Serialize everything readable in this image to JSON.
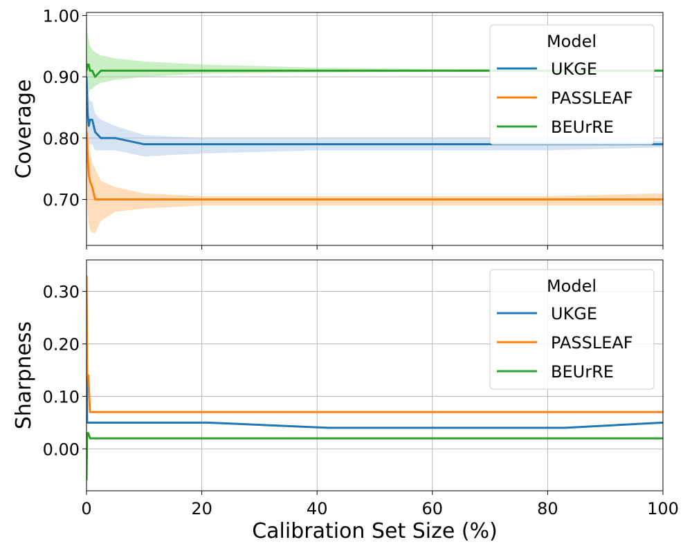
{
  "chart_data": [
    {
      "type": "line",
      "title": "",
      "xlabel": "",
      "ylabel": "Coverage",
      "xlim": [
        0,
        100
      ],
      "ylim": [
        0.625,
        1.005
      ],
      "xticks": [
        0,
        20,
        40,
        60,
        80,
        100
      ],
      "yticks": [
        0.7,
        0.8,
        0.9,
        1.0
      ],
      "ytick_labels": [
        "0.70",
        "0.80",
        "0.90",
        "1.00"
      ],
      "show_xtick_labels": false,
      "grid": true,
      "legend": {
        "title": "Model",
        "position": "top-right"
      },
      "series": [
        {
          "name": "UKGE",
          "color": "#1f77b4",
          "band_color": "#aec7e8",
          "x": [
            0,
            0.2,
            0.4,
            0.6,
            1,
            1.5,
            2.5,
            5,
            10,
            20,
            40,
            60,
            80,
            100
          ],
          "y": [
            0.9,
            0.84,
            0.82,
            0.83,
            0.83,
            0.81,
            0.8,
            0.8,
            0.79,
            0.79,
            0.79,
            0.79,
            0.79,
            0.79
          ],
          "lower": [
            0.8,
            0.79,
            0.79,
            0.79,
            0.79,
            0.78,
            0.78,
            0.78,
            0.77,
            0.775,
            0.78,
            0.78,
            0.78,
            0.785
          ],
          "upper": [
            0.96,
            0.9,
            0.87,
            0.86,
            0.86,
            0.84,
            0.83,
            0.82,
            0.805,
            0.8,
            0.8,
            0.8,
            0.8,
            0.795
          ]
        },
        {
          "name": "PASSLEAF",
          "color": "#ff7f0e",
          "band_color": "#ffbb78",
          "x": [
            0,
            0.2,
            0.4,
            0.6,
            1,
            1.5,
            2.5,
            5,
            10,
            20,
            40,
            60,
            80,
            100
          ],
          "y": [
            0.81,
            0.77,
            0.74,
            0.73,
            0.72,
            0.7,
            0.7,
            0.7,
            0.7,
            0.7,
            0.7,
            0.7,
            0.7,
            0.7
          ],
          "lower": [
            0.71,
            0.68,
            0.66,
            0.65,
            0.645,
            0.645,
            0.665,
            0.68,
            0.685,
            0.69,
            0.69,
            0.69,
            0.69,
            0.69
          ],
          "upper": [
            0.87,
            0.83,
            0.8,
            0.78,
            0.76,
            0.75,
            0.73,
            0.72,
            0.71,
            0.705,
            0.705,
            0.705,
            0.705,
            0.71
          ]
        },
        {
          "name": "BEUrRE",
          "color": "#2ca02c",
          "band_color": "#98df8a",
          "x": [
            0,
            0.2,
            0.4,
            0.6,
            1,
            1.5,
            2.5,
            5,
            10,
            20,
            40,
            60,
            80,
            100
          ],
          "y": [
            0.91,
            0.92,
            0.92,
            0.91,
            0.91,
            0.9,
            0.91,
            0.91,
            0.91,
            0.91,
            0.91,
            0.91,
            0.91,
            0.91
          ],
          "lower": [
            0.86,
            0.87,
            0.875,
            0.88,
            0.88,
            0.885,
            0.89,
            0.895,
            0.9,
            0.905,
            0.907,
            0.908,
            0.908,
            0.908
          ],
          "upper": [
            1.0,
            0.97,
            0.96,
            0.95,
            0.945,
            0.94,
            0.935,
            0.93,
            0.925,
            0.92,
            0.915,
            0.913,
            0.912,
            0.912
          ]
        }
      ]
    },
    {
      "type": "line",
      "title": "",
      "xlabel": "Calibration Set Size (%)",
      "ylabel": "Sharpness",
      "xlim": [
        0,
        100
      ],
      "ylim": [
        -0.08,
        0.36
      ],
      "xticks": [
        0,
        20,
        40,
        60,
        80,
        100
      ],
      "xtick_labels": [
        "0",
        "20",
        "40",
        "60",
        "80",
        "100"
      ],
      "yticks": [
        0.0,
        0.1,
        0.2,
        0.3
      ],
      "ytick_labels": [
        "0.00",
        "0.10",
        "0.20",
        "0.30"
      ],
      "show_xtick_labels": true,
      "grid": true,
      "legend": {
        "title": "Model",
        "position": "top-right"
      },
      "series": [
        {
          "name": "UKGE",
          "color": "#1f77b4",
          "x": [
            0,
            0.1,
            0.3,
            0.6,
            1,
            5,
            20,
            21,
            42,
            60,
            83,
            100
          ],
          "y": [
            0.33,
            0.05,
            0.05,
            0.05,
            0.05,
            0.05,
            0.05,
            0.05,
            0.04,
            0.04,
            0.04,
            0.05
          ]
        },
        {
          "name": "PASSLEAF",
          "color": "#ff7f0e",
          "x": [
            0,
            0.1,
            0.3,
            0.6,
            1,
            5,
            20,
            40,
            60,
            80,
            100
          ],
          "y": [
            0.33,
            0.14,
            0.14,
            0.07,
            0.07,
            0.07,
            0.07,
            0.07,
            0.07,
            0.07,
            0.07
          ]
        },
        {
          "name": "BEUrRE",
          "color": "#2ca02c",
          "x": [
            0,
            0.1,
            0.3,
            0.6,
            1,
            5,
            20,
            40,
            60,
            80,
            100
          ],
          "y": [
            -0.06,
            0.03,
            0.03,
            0.02,
            0.02,
            0.02,
            0.02,
            0.02,
            0.02,
            0.02,
            0.02
          ]
        }
      ]
    }
  ]
}
